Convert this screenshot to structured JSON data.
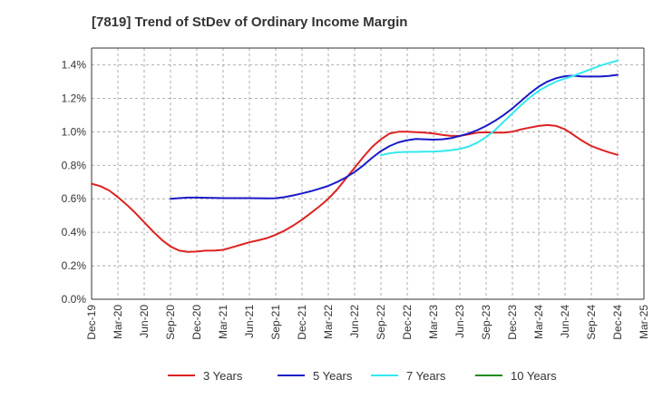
{
  "chart_data": {
    "type": "line",
    "title": "[7819]  Trend of StDev of Ordinary Income Margin",
    "xlabel": "",
    "ylabel": "",
    "ylim": [
      0,
      1.5
    ],
    "y_ticks": [
      0,
      0.2,
      0.4,
      0.6,
      0.8,
      1.0,
      1.2,
      1.4
    ],
    "y_tick_labels": [
      "0.0%",
      "0.2%",
      "0.4%",
      "0.6%",
      "0.8%",
      "1.0%",
      "1.2%",
      "1.4%"
    ],
    "x_tick_labels": [
      "Dec-19",
      "Mar-20",
      "Jun-20",
      "Sep-20",
      "Dec-20",
      "Mar-21",
      "Jun-21",
      "Sep-21",
      "Dec-21",
      "Mar-22",
      "Jun-22",
      "Sep-22",
      "Dec-22",
      "Mar-23",
      "Jun-23",
      "Sep-23",
      "Dec-23",
      "Mar-24",
      "Jun-24",
      "Sep-24",
      "Dec-24",
      "Mar-25"
    ],
    "grid": true,
    "legend_position": "bottom",
    "series": [
      {
        "name": "3 Years",
        "color": "#dd2222",
        "x": [
          "Dec-19",
          "Jan-20",
          "Feb-20",
          "Mar-20",
          "Apr-20",
          "May-20",
          "Jun-20",
          "Jul-20",
          "Aug-20",
          "Sep-20",
          "Oct-20",
          "Nov-20",
          "Dec-20",
          "Jan-21",
          "Feb-21",
          "Mar-21",
          "Apr-21",
          "May-21",
          "Jun-21",
          "Jul-21",
          "Aug-21",
          "Sep-21",
          "Oct-21",
          "Nov-21",
          "Dec-21",
          "Jan-22",
          "Feb-22",
          "Mar-22",
          "Apr-22",
          "May-22",
          "Jun-22",
          "Jul-22",
          "Aug-22",
          "Sep-22",
          "Oct-22",
          "Nov-22",
          "Dec-22",
          "Jan-23",
          "Feb-23",
          "Mar-23",
          "Apr-23",
          "May-23",
          "Jun-23",
          "Jul-23",
          "Aug-23",
          "Sep-23",
          "Oct-23",
          "Nov-23",
          "Dec-23",
          "Jan-24",
          "Feb-24",
          "Mar-24",
          "Apr-24",
          "May-24",
          "Jun-24",
          "Jul-24",
          "Aug-24",
          "Sep-24",
          "Oct-24",
          "Nov-24",
          "Dec-24"
        ],
        "values": [
          0.69,
          0.675,
          0.65,
          0.61,
          0.565,
          0.515,
          0.46,
          0.405,
          0.355,
          0.315,
          0.29,
          0.283,
          0.285,
          0.29,
          0.29,
          0.295,
          0.31,
          0.325,
          0.34,
          0.352,
          0.365,
          0.385,
          0.41,
          0.44,
          0.475,
          0.515,
          0.555,
          0.6,
          0.655,
          0.72,
          0.785,
          0.85,
          0.91,
          0.955,
          0.99,
          1.0,
          1.0,
          0.998,
          0.995,
          0.99,
          0.982,
          0.975,
          0.975,
          0.985,
          0.995,
          0.997,
          0.995,
          0.995,
          1.0,
          1.015,
          1.025,
          1.035,
          1.04,
          1.035,
          1.015,
          0.98,
          0.945,
          0.915,
          0.895,
          0.878,
          0.862
        ]
      },
      {
        "name": "5 Years",
        "color": "#1a1ac8",
        "x": [
          "Sep-20",
          "Oct-20",
          "Nov-20",
          "Dec-20",
          "Jan-21",
          "Feb-21",
          "Mar-21",
          "Apr-21",
          "May-21",
          "Jun-21",
          "Jul-21",
          "Aug-21",
          "Sep-21",
          "Oct-21",
          "Nov-21",
          "Dec-21",
          "Jan-22",
          "Feb-22",
          "Mar-22",
          "Apr-22",
          "May-22",
          "Jun-22",
          "Jul-22",
          "Aug-22",
          "Sep-22",
          "Oct-22",
          "Nov-22",
          "Dec-22",
          "Jan-23",
          "Feb-23",
          "Mar-23",
          "Apr-23",
          "May-23",
          "Jun-23",
          "Jul-23",
          "Aug-23",
          "Sep-23",
          "Oct-23",
          "Nov-23",
          "Dec-23",
          "Jan-24",
          "Feb-24",
          "Mar-24",
          "Apr-24",
          "May-24",
          "Jun-24",
          "Jul-24",
          "Aug-24",
          "Sep-24",
          "Oct-24",
          "Nov-24",
          "Dec-24"
        ],
        "values": [
          0.6,
          0.604,
          0.607,
          0.607,
          0.606,
          0.605,
          0.604,
          0.604,
          0.604,
          0.604,
          0.603,
          0.602,
          0.603,
          0.61,
          0.62,
          0.632,
          0.645,
          0.66,
          0.677,
          0.7,
          0.727,
          0.76,
          0.8,
          0.845,
          0.885,
          0.915,
          0.937,
          0.95,
          0.957,
          0.955,
          0.953,
          0.955,
          0.962,
          0.975,
          0.99,
          1.01,
          1.035,
          1.065,
          1.1,
          1.14,
          1.185,
          1.23,
          1.27,
          1.3,
          1.32,
          1.332,
          1.335,
          1.33,
          1.33,
          1.33,
          1.333,
          1.34
        ]
      },
      {
        "name": "7 Years",
        "color": "#33e8f0",
        "x": [
          "Sep-22",
          "Oct-22",
          "Nov-22",
          "Dec-22",
          "Jan-23",
          "Feb-23",
          "Mar-23",
          "Apr-23",
          "May-23",
          "Jun-23",
          "Jul-23",
          "Aug-23",
          "Sep-23",
          "Oct-23",
          "Nov-23",
          "Dec-23",
          "Jan-24",
          "Feb-24",
          "Mar-24",
          "Apr-24",
          "May-24",
          "Jun-24",
          "Jul-24",
          "Aug-24",
          "Sep-24",
          "Oct-24",
          "Nov-24",
          "Dec-24"
        ],
        "values": [
          0.86,
          0.872,
          0.878,
          0.88,
          0.88,
          0.881,
          0.882,
          0.885,
          0.89,
          0.898,
          0.912,
          0.935,
          0.968,
          1.01,
          1.06,
          1.11,
          1.16,
          1.205,
          1.245,
          1.275,
          1.3,
          1.318,
          1.335,
          1.355,
          1.375,
          1.395,
          1.41,
          1.425
        ]
      },
      {
        "name": "10 Years",
        "color": "#1e8c1e",
        "x": [],
        "values": []
      }
    ]
  }
}
